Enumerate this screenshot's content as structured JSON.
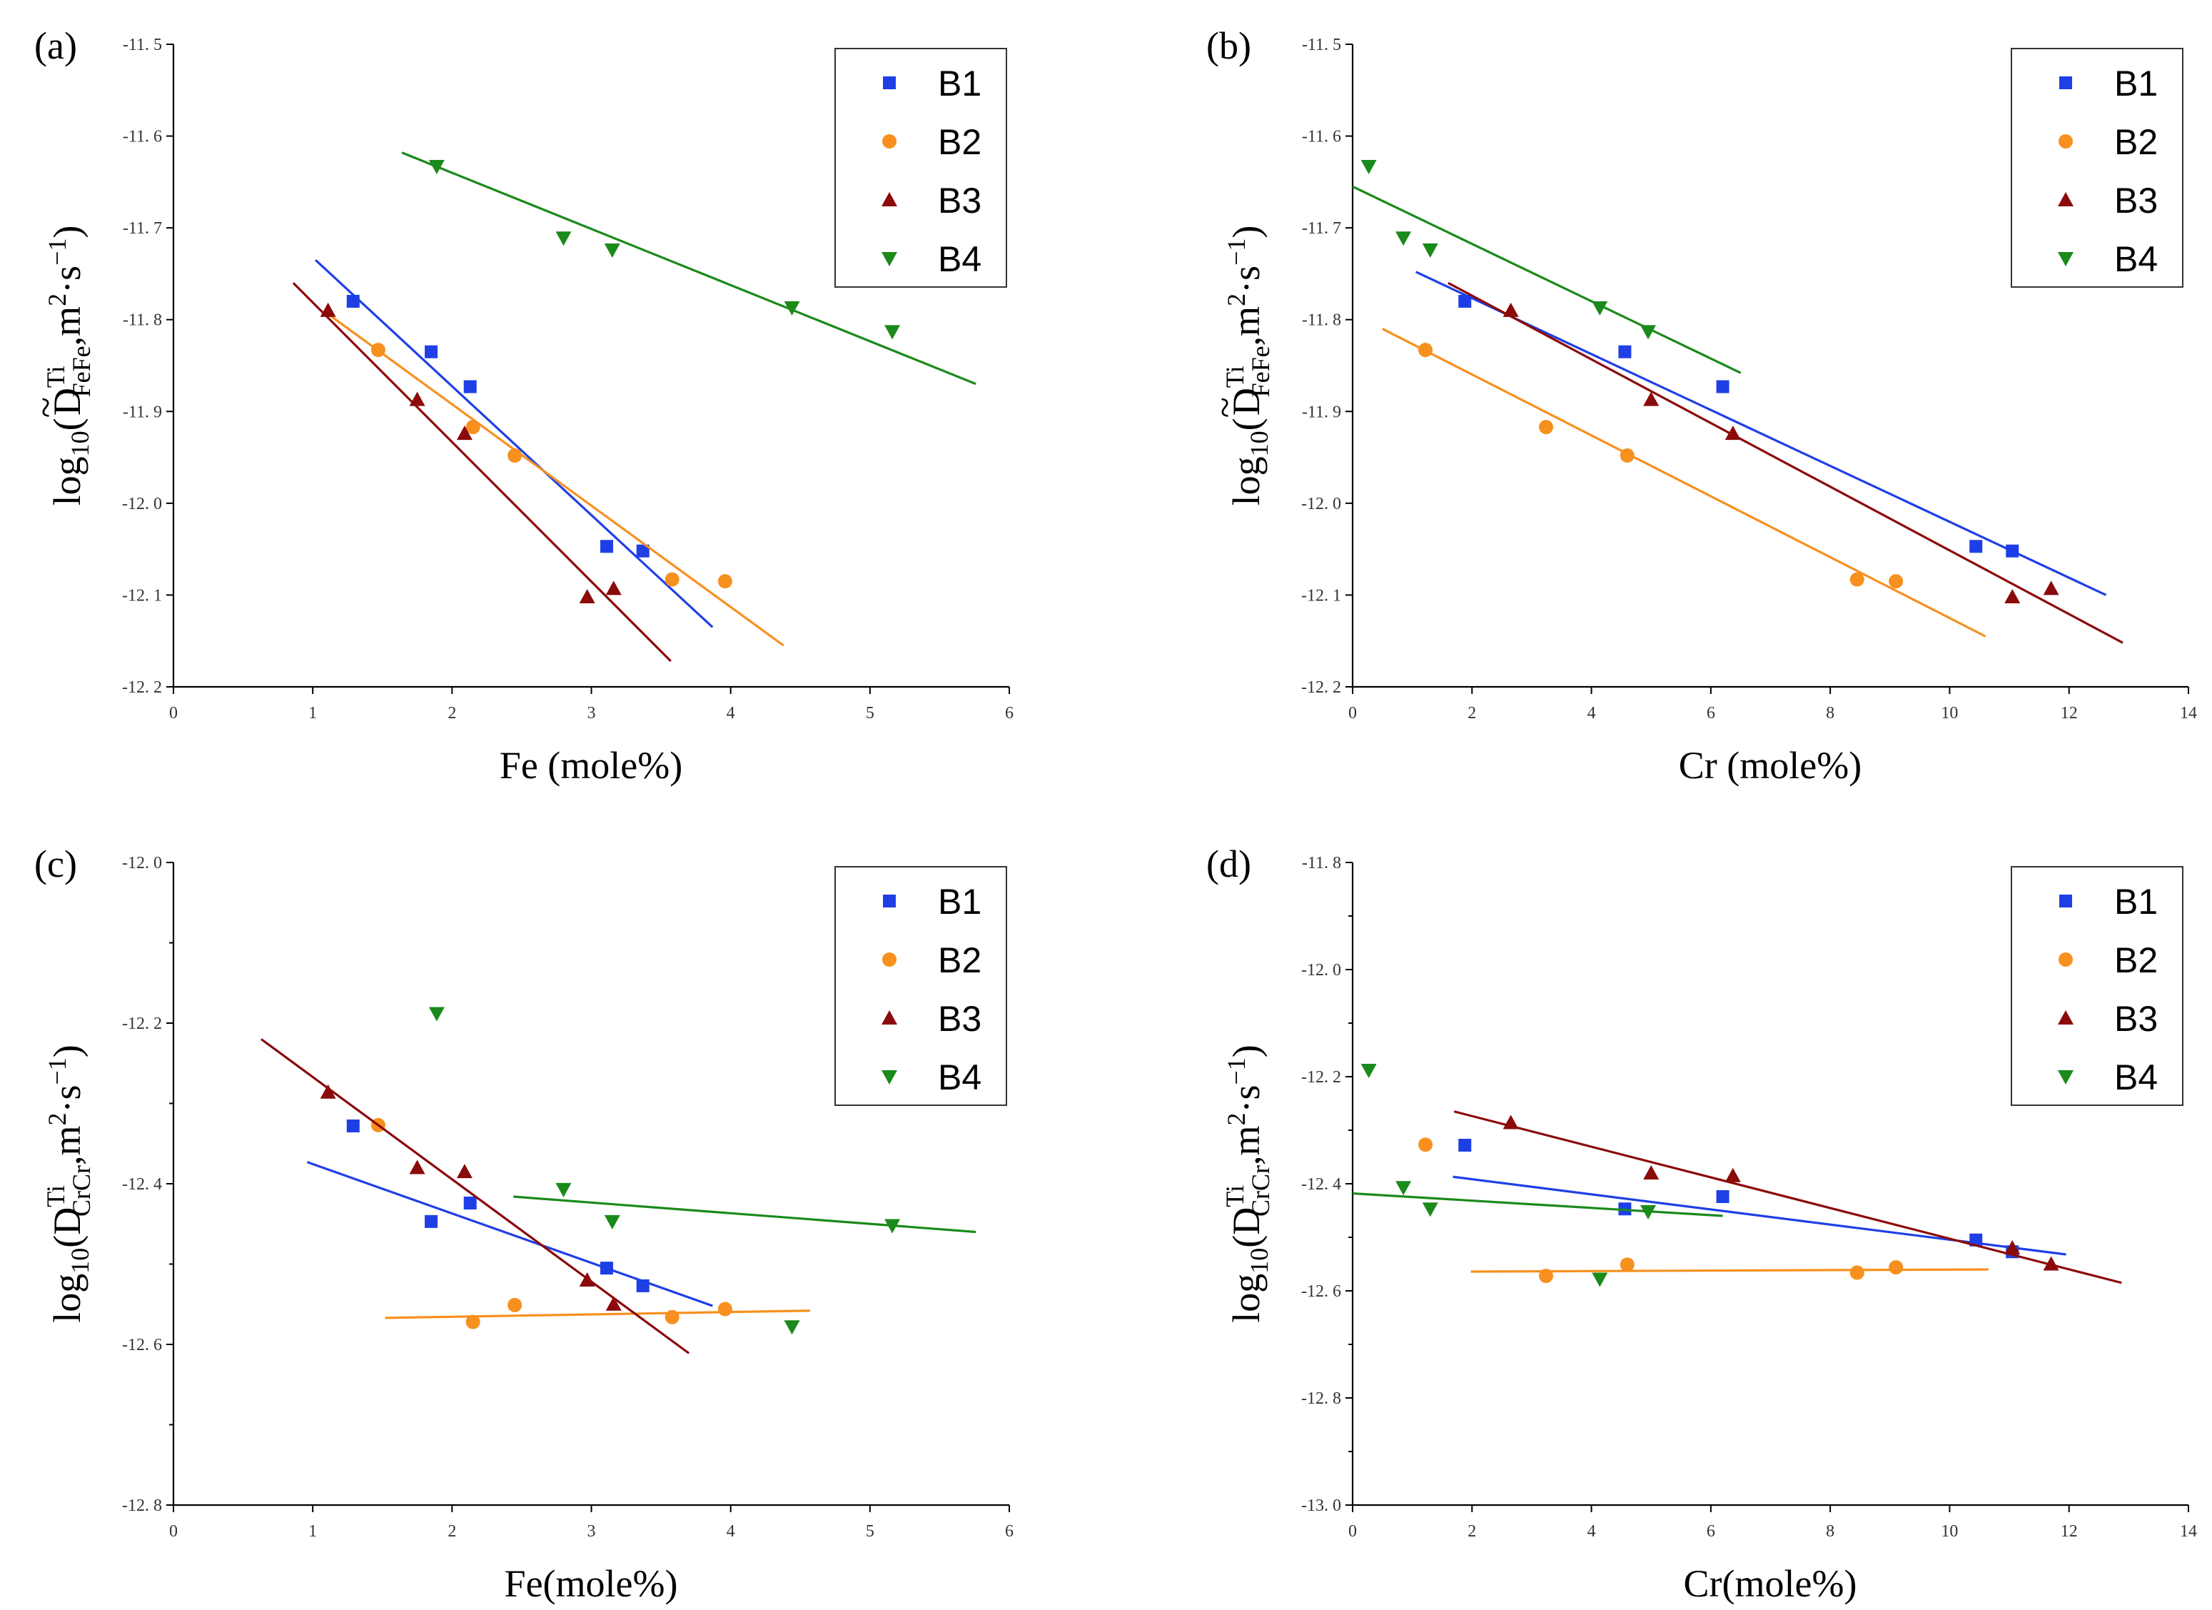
{
  "colors": {
    "B1": "#1f3fe6",
    "B2": "#f7901e",
    "B3": "#8b0a0a",
    "B4": "#1a8a1a"
  },
  "markers": {
    "B1": "square",
    "B2": "circle",
    "B3": "triangle-up",
    "B4": "triangle-down"
  },
  "chart_data": [
    {
      "panel": "(a)",
      "type": "scatter",
      "xlabel": "Fe (mole%)",
      "ylabel": {
        "base": "log",
        "sub1": "10",
        "paren": "(",
        "tilde": "~",
        "D": "D",
        "sup": "Ti",
        "sub2": "FeFe",
        "rest": ",m",
        "sq": "2",
        "dot": "·s",
        "neg": "−1",
        "close": ")"
      },
      "xlim": [
        0,
        6
      ],
      "ylim": [
        -12.2,
        -11.5
      ],
      "xticks": [
        0,
        1,
        2,
        3,
        4,
        5,
        6
      ],
      "xtick_labels": [
        "0",
        "1",
        "2",
        "3",
        "4",
        "5",
        "6"
      ],
      "yticks": [
        -12.2,
        -12.1,
        -12.0,
        -11.9,
        -11.8,
        -11.7,
        -11.6,
        -11.5
      ],
      "ytick_labels": [
        "-12. 2",
        "-12. 1",
        "-12. 0",
        "-11. 9",
        "-11. 8",
        "-11. 7",
        "-11. 6",
        "-11. 5"
      ],
      "legend": [
        "B1",
        "B2",
        "B3",
        "B4"
      ],
      "series": [
        {
          "name": "B1",
          "points": [
            [
              1.29,
              -11.78
            ],
            [
              1.85,
              -11.835
            ],
            [
              2.13,
              -11.873
            ],
            [
              3.11,
              -12.047
            ],
            [
              3.37,
              -12.052
            ]
          ],
          "fit": [
            [
              1.02,
              -11.735
            ],
            [
              3.87,
              -12.135
            ]
          ]
        },
        {
          "name": "B2",
          "points": [
            [
              1.47,
              -11.833
            ],
            [
              2.15,
              -11.917
            ],
            [
              2.45,
              -11.948
            ],
            [
              3.58,
              -12.083
            ],
            [
              3.96,
              -12.085
            ]
          ],
          "fit": [
            [
              1.12,
              -11.795
            ],
            [
              4.38,
              -12.155
            ]
          ]
        },
        {
          "name": "B3",
          "points": [
            [
              1.11,
              -11.79
            ],
            [
              1.75,
              -11.887
            ],
            [
              2.09,
              -11.924
            ],
            [
              2.97,
              -12.102
            ],
            [
              3.16,
              -12.093
            ]
          ],
          "fit": [
            [
              0.86,
              -11.76
            ],
            [
              3.57,
              -12.172
            ]
          ]
        },
        {
          "name": "B4",
          "points": [
            [
              1.89,
              -11.633
            ],
            [
              2.8,
              -11.711
            ],
            [
              3.15,
              -11.724
            ],
            [
              4.44,
              -11.787
            ],
            [
              5.16,
              -11.813
            ]
          ],
          "fit": [
            [
              1.64,
              -11.618
            ],
            [
              5.76,
              -11.87
            ]
          ]
        }
      ]
    },
    {
      "panel": "(b)",
      "type": "scatter",
      "xlabel": "Cr (mole%)",
      "ylabel": {
        "base": "log",
        "sub1": "10",
        "paren": "(",
        "tilde": "~",
        "D": "D",
        "sup": "Ti",
        "sub2": "FeFe",
        "rest": ",m",
        "sq": "2",
        "dot": "·s",
        "neg": "−1",
        "close": ")"
      },
      "xlim": [
        0,
        14
      ],
      "ylim": [
        -12.2,
        -11.5
      ],
      "xticks": [
        0,
        2,
        4,
        6,
        8,
        10,
        12,
        14
      ],
      "xtick_labels": [
        "0",
        "2",
        "4",
        "6",
        "8",
        "10",
        "12",
        "14"
      ],
      "yticks": [
        -12.2,
        -12.1,
        -12.0,
        -11.9,
        -11.8,
        -11.7,
        -11.6,
        -11.5
      ],
      "ytick_labels": [
        "-12. 2",
        "-12. 1",
        "-12. 0",
        "-11. 9",
        "-11. 8",
        "-11. 7",
        "-11. 6",
        "-11. 5"
      ],
      "legend": [
        "B1",
        "B2",
        "B3",
        "B4"
      ],
      "series": [
        {
          "name": "B1",
          "points": [
            [
              1.88,
              -11.78
            ],
            [
              4.56,
              -11.835
            ],
            [
              6.2,
              -11.873
            ],
            [
              10.44,
              -12.047
            ],
            [
              11.05,
              -12.052
            ]
          ],
          "fit": [
            [
              1.06,
              -11.748
            ],
            [
              12.62,
              -12.1
            ]
          ]
        },
        {
          "name": "B2",
          "points": [
            [
              1.22,
              -11.833
            ],
            [
              3.24,
              -11.917
            ],
            [
              4.6,
              -11.948
            ],
            [
              8.45,
              -12.083
            ],
            [
              9.1,
              -12.085
            ]
          ],
          "fit": [
            [
              0.5,
              -11.81
            ],
            [
              10.6,
              -12.145
            ]
          ]
        },
        {
          "name": "B3",
          "points": [
            [
              2.65,
              -11.79
            ],
            [
              5.0,
              -11.887
            ],
            [
              6.37,
              -11.924
            ],
            [
              11.05,
              -12.102
            ],
            [
              11.7,
              -12.093
            ]
          ],
          "fit": [
            [
              1.6,
              -11.76
            ],
            [
              12.9,
              -12.152
            ]
          ]
        },
        {
          "name": "B4",
          "points": [
            [
              0.27,
              -11.633
            ],
            [
              0.85,
              -11.711
            ],
            [
              1.3,
              -11.724
            ],
            [
              4.14,
              -11.787
            ],
            [
              4.95,
              -11.813
            ]
          ],
          "fit": [
            [
              0.0,
              -11.655
            ],
            [
              6.5,
              -11.858
            ]
          ]
        }
      ]
    },
    {
      "panel": "(c)",
      "type": "scatter",
      "xlabel": "Fe(mole%)",
      "ylabel": {
        "base": "log",
        "sub1": "10",
        "paren": "(",
        "tilde": "",
        "D": "D",
        "sup": "Ti",
        "sub2": "CrCr",
        "rest": ",m",
        "sq": "2",
        "dot": "·s",
        "neg": "−1",
        "close": ")"
      },
      "xlim": [
        0,
        6
      ],
      "ylim": [
        -12.8,
        -12.0
      ],
      "xticks": [
        0,
        1,
        2,
        3,
        4,
        5,
        6
      ],
      "xtick_labels": [
        "0",
        "1",
        "2",
        "3",
        "4",
        "5",
        "6"
      ],
      "yticks": [
        -12.8,
        -12.6,
        -12.4,
        -12.2,
        -12.0
      ],
      "ytick_labels": [
        "-12. 8",
        "-12. 6",
        "-12. 4",
        "-12. 2",
        "-12. 0"
      ],
      "yminor": [
        -12.7,
        -12.5,
        -12.3,
        -12.1
      ],
      "legend": [
        "B1",
        "B2",
        "B3",
        "B4"
      ],
      "series": [
        {
          "name": "B1",
          "points": [
            [
              1.29,
              -12.328
            ],
            [
              1.85,
              -12.447
            ],
            [
              2.13,
              -12.424
            ],
            [
              3.11,
              -12.505
            ],
            [
              3.37,
              -12.527
            ]
          ],
          "fit": [
            [
              0.96,
              -12.373
            ],
            [
              3.87,
              -12.552
            ]
          ]
        },
        {
          "name": "B2",
          "points": [
            [
              1.47,
              -12.327
            ],
            [
              2.15,
              -12.572
            ],
            [
              2.45,
              -12.551
            ],
            [
              3.58,
              -12.566
            ],
            [
              3.96,
              -12.556
            ]
          ],
          "fit": [
            [
              1.52,
              -12.567
            ],
            [
              4.57,
              -12.558
            ]
          ]
        },
        {
          "name": "B3",
          "points": [
            [
              1.11,
              -12.286
            ],
            [
              1.75,
              -12.38
            ],
            [
              2.09,
              -12.385
            ],
            [
              2.97,
              -12.52
            ],
            [
              3.16,
              -12.55
            ]
          ],
          "fit": [
            [
              0.63,
              -12.22
            ],
            [
              3.7,
              -12.611
            ]
          ]
        },
        {
          "name": "B4",
          "points": [
            [
              1.89,
              -12.188
            ],
            [
              2.8,
              -12.407
            ],
            [
              3.15,
              -12.447
            ],
            [
              4.44,
              -12.578
            ],
            [
              5.16,
              -12.452
            ]
          ],
          "fit": [
            [
              2.44,
              -12.416
            ],
            [
              5.76,
              -12.46
            ]
          ]
        }
      ]
    },
    {
      "panel": "(d)",
      "type": "scatter",
      "xlabel": "Cr(mole%)",
      "ylabel": {
        "base": "log",
        "sub1": "10",
        "paren": "(",
        "tilde": "",
        "D": "D",
        "sup": "Ti",
        "sub2": "CrCr",
        "rest": ",m",
        "sq": "2",
        "dot": "·s",
        "neg": "−1",
        "close": ")"
      },
      "xlim": [
        0,
        14
      ],
      "ylim": [
        -13.0,
        -11.8
      ],
      "xticks": [
        0,
        2,
        4,
        6,
        8,
        10,
        12,
        14
      ],
      "xtick_labels": [
        "0",
        "2",
        "4",
        "6",
        "8",
        "10",
        "12",
        "14"
      ],
      "yticks": [
        -13.0,
        -12.8,
        -12.6,
        -12.4,
        -12.2,
        -12.0,
        -11.8
      ],
      "ytick_labels": [
        "-13. 0",
        "-12. 8",
        "-12. 6",
        "-12. 4",
        "-12. 2",
        "-12. 0",
        "-11. 8"
      ],
      "yminor": [
        -12.9,
        -12.7,
        -12.5,
        -12.3,
        -12.1,
        -11.9
      ],
      "legend": [
        "B1",
        "B2",
        "B3",
        "B4"
      ],
      "series": [
        {
          "name": "B1",
          "points": [
            [
              1.88,
              -12.328
            ],
            [
              4.56,
              -12.447
            ],
            [
              6.2,
              -12.424
            ],
            [
              10.44,
              -12.505
            ],
            [
              11.05,
              -12.527
            ]
          ],
          "fit": [
            [
              1.68,
              -12.387
            ],
            [
              11.95,
              -12.532
            ]
          ]
        },
        {
          "name": "B2",
          "points": [
            [
              1.22,
              -12.327
            ],
            [
              3.24,
              -12.572
            ],
            [
              4.6,
              -12.551
            ],
            [
              8.45,
              -12.566
            ],
            [
              9.1,
              -12.556
            ]
          ],
          "fit": [
            [
              1.98,
              -12.564
            ],
            [
              10.65,
              -12.56
            ]
          ]
        },
        {
          "name": "B3",
          "points": [
            [
              2.65,
              -12.286
            ],
            [
              5.0,
              -12.38
            ],
            [
              6.37,
              -12.385
            ],
            [
              11.05,
              -12.52
            ],
            [
              11.7,
              -12.55
            ]
          ],
          "fit": [
            [
              1.7,
              -12.265
            ],
            [
              12.88,
              -12.585
            ]
          ]
        },
        {
          "name": "B4",
          "points": [
            [
              0.27,
              -12.188
            ],
            [
              0.85,
              -12.407
            ],
            [
              1.3,
              -12.447
            ],
            [
              4.14,
              -12.578
            ],
            [
              4.95,
              -12.452
            ]
          ],
          "fit": [
            [
              0.0,
              -12.418
            ],
            [
              6.2,
              -12.46
            ]
          ]
        }
      ]
    }
  ]
}
